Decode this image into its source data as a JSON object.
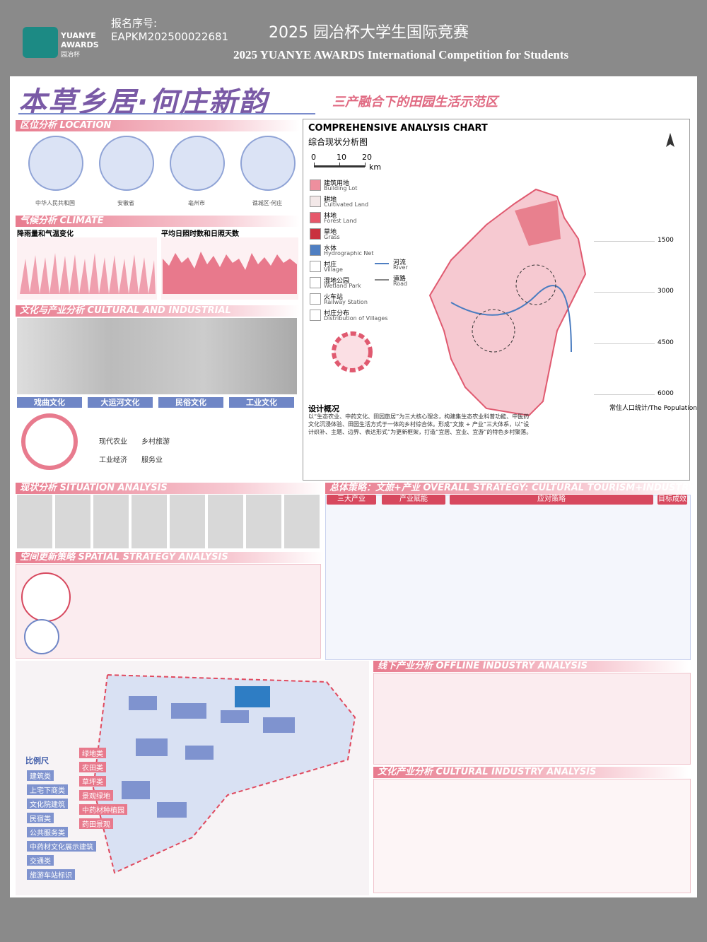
{
  "header": {
    "reg_label": "报名序号:",
    "reg_code": "EAPKM202500022681",
    "logo_en": "YUANYE AWARDS",
    "logo_cn": "园冶杯",
    "title_cn": "2025 园冶杯大学生国际竞赛",
    "title_en": "2025 YUANYE AWARDS International Competition for  Students"
  },
  "poster": {
    "title": "本草乡居·何庄新韵",
    "subtitle": "三产融合下的田园生活示范区",
    "sections": {
      "location": "区位分析 LOCATION",
      "climate": "气候分析 CLIMATE",
      "culture": "文化与产业分析 CULTURAL AND INDUSTRIAL",
      "situation": "现状分析 SITUATION ANALYSIS",
      "overall": "总体策略：文旅+产业 OVERALL STRATEGY: CULTURAL TOURISM+INDUSTRY",
      "spatial": "空间更新策略 SPATIAL STRATEGY ANALYSIS",
      "offline": "线下产业分析 OFFLINE INDUSTRY ANALYSIS",
      "cultural_industry": "文化产业分析 CULTURAL INDUSTRY ANALYSIS"
    },
    "location_labels": [
      "中华人民共和国",
      "安徽省",
      "亳州市",
      "谯城区·何庄"
    ],
    "climate": {
      "chart1_title": "降雨量和气温变化",
      "chart2_title": "平均日照时数和日照天数"
    },
    "culture": {
      "themes": [
        "戏曲文化",
        "大运河文化",
        "民俗文化",
        "工业文化"
      ],
      "industries": [
        "现代农业",
        "乡村旅游",
        "工业经济",
        "服务业"
      ]
    },
    "analysis_chart": {
      "title_en": "COMPREHENSIVE ANALYSIS CHART",
      "title_cn": "综合现状分析图",
      "scale": [
        0,
        10,
        20
      ],
      "scale_unit": "km",
      "legend": [
        {
          "cn": "建筑用地",
          "en": "Building Lot"
        },
        {
          "cn": "耕地",
          "en": "Cultivated Land"
        },
        {
          "cn": "林地",
          "en": "Forest Land"
        },
        {
          "cn": "草地",
          "en": "Grass"
        },
        {
          "cn": "水体",
          "en": "Hydrographic Net"
        },
        {
          "cn": "村庄",
          "en": "Village"
        },
        {
          "cn": "湿地公园",
          "en": "Wetland Park"
        },
        {
          "cn": "火车站",
          "en": "Railway Station"
        },
        {
          "cn": "村庄分布",
          "en": "Distribution of Villages"
        }
      ],
      "legend2": [
        {
          "cn": "河流",
          "en": "River"
        },
        {
          "cn": "道路",
          "en": "Road"
        }
      ],
      "population_ticks": [
        1500,
        3000,
        4500,
        6000
      ],
      "population_label": "常住人口统计/The Population",
      "overview_title": "设计概况",
      "overview_text": "以“生态农业、中药文化、田园旅居”为三大核心理念，构建集生态农业科普功能、中医药文化沉浸体验、田园生活方式于一体的乡村综合体。形成“文旅 + 产业”三大体系，以“设计织补、主题、边界、表达形式”为更新框架，打造“宜居、宜业、宜游”的特色乡村聚落。"
    },
    "strategy": {
      "columns": [
        "三大产业",
        "产业赋能",
        "应对策略",
        "目标成效"
      ]
    },
    "masterplan": {
      "scale_label": "比例尺",
      "legend_left": [
        "建筑类",
        "上宅下商类",
        "文化院建筑",
        "民宿类",
        "公共服务类",
        "中药材文化展示建筑",
        "交通类",
        "旅游车站标识"
      ],
      "legend_right": [
        "绿地类",
        "农田类",
        "草坪类",
        "景观绿地",
        "中药材种植园",
        "药田景观"
      ]
    }
  }
}
